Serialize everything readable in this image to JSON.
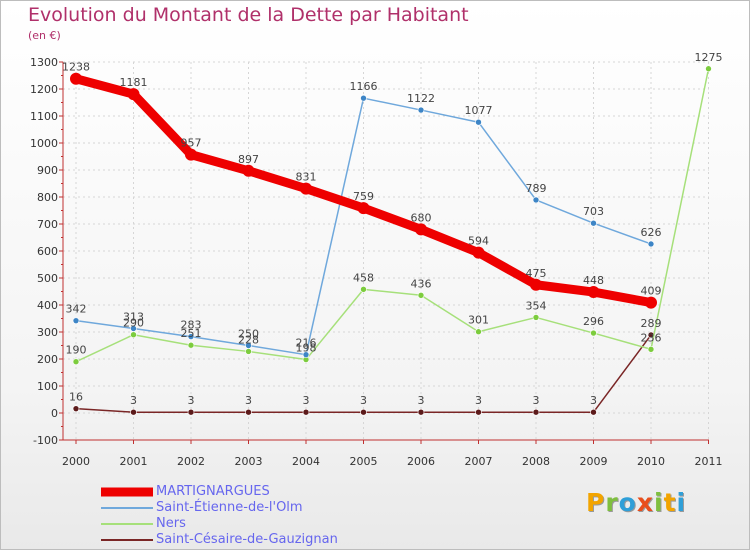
{
  "chart_data": {
    "type": "line",
    "title": "Evolution du Montant de la Dette par Habitant",
    "subtitle": "(en €)",
    "x": [
      "2000",
      "2001",
      "2002",
      "2003",
      "2004",
      "2005",
      "2006",
      "2007",
      "2008",
      "2009",
      "2010",
      "2011"
    ],
    "ylim": [
      -100,
      1300
    ],
    "yticks": [
      -100,
      0,
      100,
      200,
      300,
      400,
      500,
      600,
      700,
      800,
      900,
      1000,
      1100,
      1200,
      1300
    ],
    "grid": true,
    "legend_position": "bottom-left",
    "series": [
      {
        "name": "MARTIGNARGUES",
        "color": "#ee0000",
        "values": [
          1238,
          1181,
          957,
          897,
          831,
          759,
          680,
          594,
          475,
          448,
          409,
          null
        ]
      },
      {
        "name": "Saint-Étienne-de-l'Olm",
        "color": "#6fa8dc",
        "marker_color": "#3d85c6",
        "values": [
          342,
          313,
          283,
          250,
          216,
          1166,
          1122,
          1077,
          789,
          703,
          626,
          null
        ]
      },
      {
        "name": "Ners",
        "color": "#a6e07a",
        "marker_color": "#7ccc3d",
        "values": [
          190,
          290,
          251,
          228,
          198,
          458,
          436,
          301,
          354,
          296,
          236,
          1275
        ]
      },
      {
        "name": "Saint-Césaire-de-Gauzignan",
        "color": "#7a2626",
        "marker_color": "#5c1a1a",
        "values": [
          16,
          3,
          3,
          3,
          3,
          3,
          3,
          3,
          3,
          3,
          289,
          null
        ]
      }
    ]
  },
  "logo": {
    "letters": [
      "P",
      "r",
      "o",
      "x",
      "i",
      "t",
      "i"
    ],
    "colors": [
      "#f2a400",
      "#7fbf3f",
      "#2f9fd8",
      "#e94e1b",
      "#7fbf3f",
      "#f2a400",
      "#2f9fd8"
    ]
  }
}
